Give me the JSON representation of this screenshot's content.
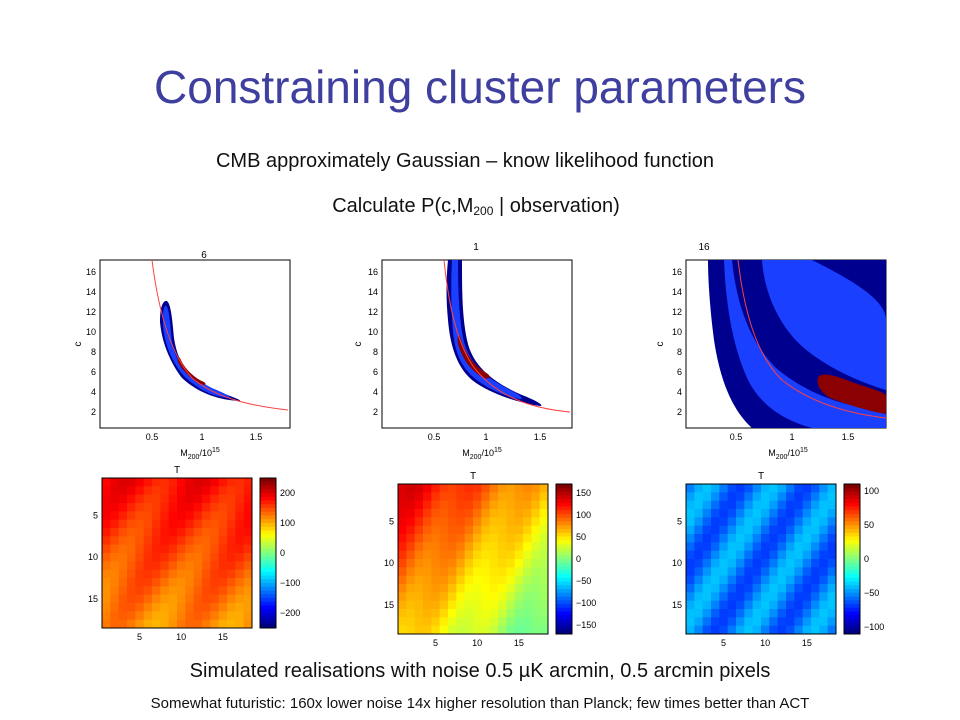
{
  "slide": {
    "title": "Constraining cluster parameters",
    "line1": "CMB approximately Gaussian – know likelihood function",
    "line2_pre": "Calculate P(c,M",
    "line2_sub": "200",
    "line2_post": " | observation)",
    "bottom1": "Simulated realisations with noise 0.5 µK  arcmin, 0.5 arcmin pixels",
    "bottom2": "Somewhat futuristic: 160x lower noise 14x higher resolution than Planck; few times better than ACT"
  },
  "contour_axes": {
    "ylabel": "c",
    "xlabel_main": "M",
    "xlabel_sub": "200",
    "xlabel_tail": "/10",
    "xlabel_sup": "15",
    "xticks": [
      "0.5",
      "1",
      "1.5"
    ],
    "yticks": [
      "2",
      "4",
      "6",
      "8",
      "10",
      "12",
      "14",
      "16"
    ]
  },
  "contour_panels": [
    {
      "title": "6"
    },
    {
      "title": "1"
    },
    {
      "title": "16"
    }
  ],
  "heatmap_axes": {
    "title": "T",
    "yticks": [
      "5",
      "10",
      "15"
    ],
    "xticks": [
      "5",
      "10",
      "15"
    ]
  },
  "heatmap_panels": [
    {
      "colorbar_ticks": [
        "200",
        "100",
        "0",
        "−100",
        "−200"
      ],
      "range": [
        -250,
        250
      ],
      "base": 150,
      "variation": 70
    },
    {
      "colorbar_ticks": [
        "150",
        "100",
        "50",
        "0",
        "−50",
        "−100",
        "−150"
      ],
      "range": [
        -170,
        170
      ],
      "base": 60,
      "variation": 80
    },
    {
      "colorbar_ticks": [
        "100",
        "50",
        "0",
        "−50",
        "−100"
      ],
      "range": [
        -110,
        110
      ],
      "base": -55,
      "variation": 15
    }
  ],
  "colors": {
    "title": "#3f3f9f",
    "contour_outer": "#00008f",
    "contour_mid": "#1a3fff",
    "contour_inner": "#8b0000",
    "model_curve": "#ff4040"
  }
}
